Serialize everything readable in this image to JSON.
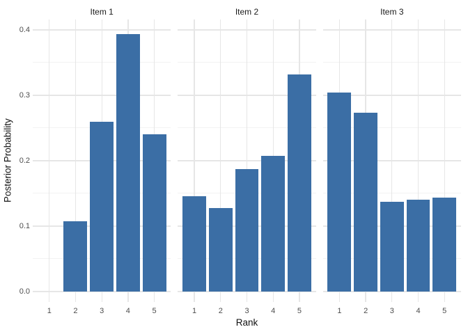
{
  "chart_data": {
    "type": "bar",
    "title": "",
    "xlabel": "Rank",
    "ylabel": "Posterior Probability",
    "categories": [
      "1",
      "2",
      "3",
      "4",
      "5"
    ],
    "facets": [
      {
        "label": "Item 1",
        "values": [
          0,
          0.107,
          0.26,
          0.394,
          0.24
        ]
      },
      {
        "label": "Item 2",
        "values": [
          0.146,
          0.128,
          0.187,
          0.207,
          0.332
        ]
      },
      {
        "label": "Item 3",
        "values": [
          0.304,
          0.273,
          0.137,
          0.14,
          0.144
        ]
      }
    ],
    "yticks": [
      0.0,
      0.1,
      0.2,
      0.3,
      0.4
    ],
    "ytick_labels": [
      "0.0",
      "0.1",
      "0.2",
      "0.3",
      "0.4"
    ],
    "yticks_minor": [
      0.05,
      0.15,
      0.25,
      0.35
    ],
    "ylim": [
      0,
      0.4
    ],
    "grid": "major-and-minor",
    "legend": "none",
    "colors": {
      "bar_fill": "#3B6EA5",
      "grid_major": "#E6E6E6",
      "grid_minor": "#F2F2F2",
      "axis_text": "#4D4D4D",
      "title_text": "#111111",
      "strip_text": "#1A1A1A",
      "background": "#FFFFFF"
    }
  }
}
